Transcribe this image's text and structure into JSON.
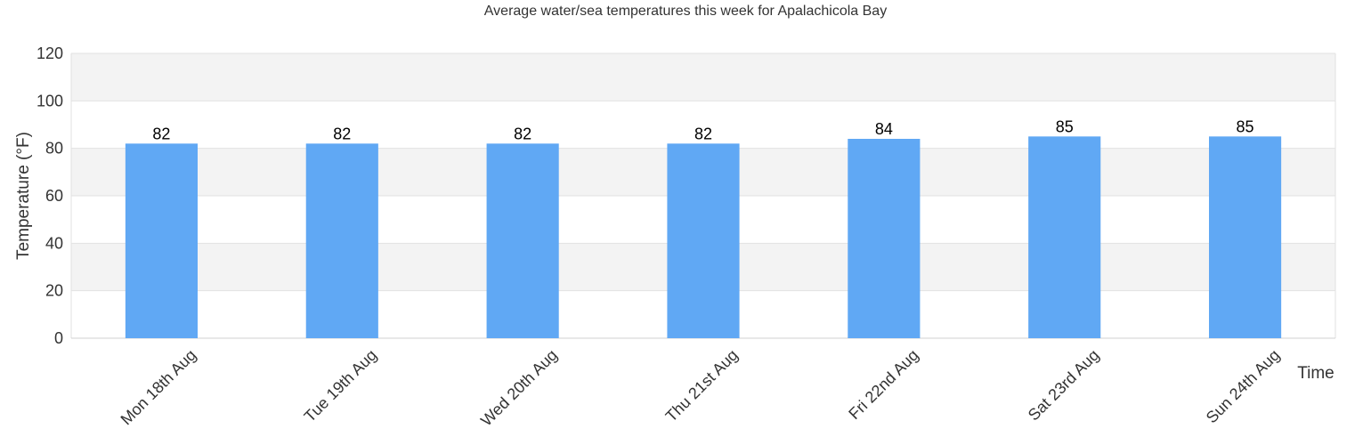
{
  "chart_data": {
    "type": "bar",
    "title": "Average water/sea temperatures this week for Apalachicola Bay",
    "xlabel": "Time",
    "ylabel": "Temperature (°F)",
    "categories": [
      "Mon 18th Aug",
      "Tue 19th Aug",
      "Wed 20th Aug",
      "Thu 21st Aug",
      "Fri 22nd Aug",
      "Sat 23rd Aug",
      "Sun 24th Aug"
    ],
    "values": [
      82,
      82,
      82,
      82,
      84,
      85,
      85
    ],
    "ylim": [
      0,
      120
    ],
    "yticks": [
      0,
      20,
      40,
      60,
      80,
      100,
      120
    ],
    "bar_color": "#60a8f4",
    "band_color": "#f3f3f3",
    "grid": true,
    "legend": "none"
  }
}
